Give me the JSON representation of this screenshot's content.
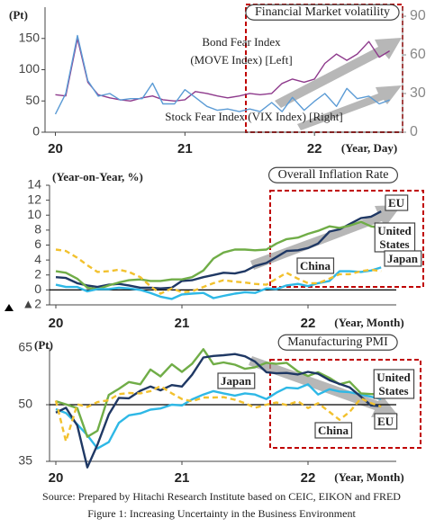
{
  "chart_data": [
    {
      "type": "line",
      "title": "Financial Market volatility",
      "y_label": "(Pt)",
      "x_label": "(Year, Day)",
      "x": [
        2020.0,
        2020.08,
        2020.17,
        2020.25,
        2020.33,
        2020.42,
        2020.5,
        2020.58,
        2020.67,
        2020.75,
        2020.83,
        2020.92,
        2021.0,
        2021.08,
        2021.17,
        2021.25,
        2021.33,
        2021.42,
        2021.5,
        2021.58,
        2021.67,
        2021.75,
        2021.83,
        2021.92,
        2022.0,
        2022.08,
        2022.17,
        2022.25,
        2022.33,
        2022.42,
        2022.5,
        2022.58
      ],
      "xlim": [
        2019.92,
        2022.68
      ],
      "xticks": [
        {
          "value": 2020,
          "label": "20"
        },
        {
          "value": 2021,
          "label": "21"
        },
        {
          "value": 2022,
          "label": "22"
        }
      ],
      "ylim": [
        0,
        200
      ],
      "yticks": [
        0,
        50,
        100,
        150
      ],
      "y2lim": [
        0,
        97
      ],
      "y2ticks": [
        0,
        30,
        60,
        90
      ],
      "series": [
        {
          "name": "Bond Fear Index",
          "note": "(MOVE Index) [Left]",
          "color": "#8e3a8c",
          "axis": "y",
          "values": [
            60,
            58,
            150,
            80,
            60,
            55,
            52,
            50,
            55,
            58,
            52,
            50,
            52,
            65,
            62,
            58,
            55,
            58,
            62,
            60,
            62,
            78,
            85,
            80,
            85,
            110,
            125,
            115,
            125,
            145,
            120,
            130
          ]
        },
        {
          "name": "Stock Fear Index (VIX Index) [Right]",
          "color": "#5b9bd5",
          "axis": "y2",
          "values": [
            14,
            30,
            75,
            40,
            28,
            30,
            25,
            26,
            26,
            38,
            22,
            22,
            33,
            27,
            20,
            17,
            18,
            16,
            18,
            16,
            23,
            16,
            27,
            17,
            24,
            30,
            20,
            34,
            26,
            28,
            22,
            25
          ]
        }
      ]
    },
    {
      "type": "line",
      "title": "Overall Inflation Rate",
      "y_label": "(Year-on-Year, %)",
      "x_label": "(Year, Month)",
      "x": [
        2020.0,
        2020.08,
        2020.17,
        2020.25,
        2020.33,
        2020.42,
        2020.5,
        2020.58,
        2020.67,
        2020.75,
        2020.83,
        2020.92,
        2021.0,
        2021.08,
        2021.17,
        2021.25,
        2021.33,
        2021.42,
        2021.5,
        2021.58,
        2021.67,
        2021.75,
        2021.83,
        2021.92,
        2022.0,
        2022.08,
        2022.17,
        2022.25,
        2022.33,
        2022.42,
        2022.5,
        2022.58
      ],
      "xlim": [
        2019.95,
        2022.7
      ],
      "xticks": [
        {
          "value": 2020,
          "label": "20"
        },
        {
          "value": 2021,
          "label": "21"
        },
        {
          "value": 2022,
          "label": "22"
        }
      ],
      "ylim": [
        -2,
        14
      ],
      "yticks": [
        {
          "value": -2,
          "label": "▲2"
        },
        0,
        2,
        4,
        6,
        8,
        10,
        12,
        14
      ],
      "reference_line": 0,
      "series": [
        {
          "name": "EU",
          "color": "#1f3864",
          "values": [
            1.7,
            1.6,
            0.9,
            0.6,
            0.4,
            0.7,
            0.8,
            0.6,
            0.3,
            0.3,
            0.2,
            0.3,
            1.2,
            1.3,
            1.7,
            2.0,
            2.3,
            2.2,
            2.5,
            3.2,
            3.6,
            4.4,
            5.2,
            5.3,
            5.6,
            6.2,
            7.8,
            8.1,
            8.8,
            9.6,
            9.8,
            10.5
          ]
        },
        {
          "name": "United States",
          "color": "#70ad47",
          "values": [
            2.5,
            2.3,
            1.5,
            0.3,
            0.1,
            0.6,
            1.0,
            1.3,
            1.4,
            1.2,
            1.2,
            1.4,
            1.4,
            1.7,
            2.6,
            4.2,
            5.0,
            5.4,
            5.4,
            5.3,
            5.4,
            6.2,
            6.8,
            7.0,
            7.5,
            7.9,
            8.5,
            8.3,
            8.6,
            9.1,
            8.5,
            8.3
          ]
        },
        {
          "name": "Japan",
          "color": "#2eb8e6",
          "values": [
            0.7,
            0.4,
            0.4,
            -0.2,
            0.1,
            0.1,
            0.3,
            0.2,
            0.0,
            -0.4,
            -0.9,
            -1.2,
            -0.6,
            -0.5,
            -0.4,
            -1.1,
            -0.8,
            -0.5,
            -0.3,
            -0.4,
            0.2,
            0.1,
            0.6,
            0.8,
            0.5,
            0.9,
            1.2,
            2.5,
            2.5,
            2.4,
            2.6,
            3.0
          ]
        },
        {
          "name": "China",
          "color": "#f2c12e",
          "dashed": true,
          "values": [
            5.4,
            5.2,
            4.3,
            3.3,
            2.4,
            2.5,
            2.7,
            2.4,
            1.7,
            0.5,
            -0.5,
            0.2,
            -0.3,
            -0.2,
            0.4,
            0.9,
            1.3,
            1.1,
            1.0,
            0.8,
            0.7,
            1.5,
            2.3,
            1.5,
            0.9,
            0.9,
            1.5,
            2.1,
            2.1,
            2.5,
            2.7,
            2.5
          ]
        }
      ]
    },
    {
      "type": "line",
      "title": "Manufacturing PMI",
      "y_label": "(Pt)",
      "x_label": "(Year, Month)",
      "x": [
        2020.0,
        2020.08,
        2020.17,
        2020.25,
        2020.33,
        2020.42,
        2020.5,
        2020.58,
        2020.67,
        2020.75,
        2020.83,
        2020.92,
        2021.0,
        2021.08,
        2021.17,
        2021.25,
        2021.33,
        2021.42,
        2021.5,
        2021.58,
        2021.67,
        2021.75,
        2021.83,
        2021.92,
        2022.0,
        2022.08,
        2022.17,
        2022.25,
        2022.33,
        2022.42,
        2022.5,
        2022.58
      ],
      "xlim": [
        2019.95,
        2022.7
      ],
      "xticks": [
        {
          "value": 2020,
          "label": "20"
        },
        {
          "value": 2021,
          "label": "21"
        },
        {
          "value": 2022,
          "label": "22"
        }
      ],
      "ylim": [
        35,
        65
      ],
      "yticks": [
        35,
        50,
        65
      ],
      "reference_line": 50,
      "series": [
        {
          "name": "Japan",
          "color": "#2eb8e6",
          "values": [
            48.8,
            47.8,
            44.8,
            41.9,
            38.4,
            40.1,
            45.2,
            47.2,
            47.7,
            48.7,
            49.0,
            50.0,
            49.8,
            51.4,
            52.7,
            53.6,
            53.0,
            52.4,
            53.0,
            52.7,
            51.5,
            53.2,
            54.5,
            54.3,
            55.4,
            52.7,
            54.1,
            53.5,
            53.3,
            52.7,
            52.1,
            51.5
          ]
        },
        {
          "name": "United States",
          "color": "#70ad47",
          "values": [
            50.9,
            50.1,
            49.1,
            41.5,
            43.1,
            52.6,
            54.2,
            56.0,
            55.4,
            59.3,
            57.5,
            60.7,
            58.7,
            60.8,
            64.7,
            60.7,
            61.2,
            60.6,
            59.5,
            59.9,
            61.1,
            60.8,
            61.1,
            58.8,
            57.6,
            58.6,
            57.1,
            55.4,
            56.1,
            53.0,
            52.8,
            52.8
          ]
        },
        {
          "name": "EU",
          "color": "#1f3864",
          "values": [
            47.9,
            49.2,
            44.5,
            33.4,
            39.4,
            47.4,
            51.8,
            51.7,
            53.7,
            54.8,
            53.8,
            55.2,
            54.8,
            57.9,
            62.5,
            62.9,
            63.1,
            63.4,
            62.8,
            61.4,
            58.6,
            58.3,
            58.4,
            58.0,
            58.7,
            58.2,
            56.5,
            55.5,
            54.6,
            52.1,
            49.8,
            49.6
          ]
        },
        {
          "name": "China",
          "color": "#f2c12e",
          "dashed": true,
          "values": [
            51.1,
            40.3,
            50.1,
            49.4,
            50.7,
            51.2,
            52.8,
            53.1,
            53.0,
            53.6,
            54.9,
            53.0,
            51.5,
            50.9,
            51.9,
            51.9,
            52.0,
            51.3,
            50.4,
            49.2,
            50.0,
            50.6,
            49.9,
            50.9,
            49.1,
            50.4,
            48.1,
            46.0,
            48.1,
            51.7,
            50.4,
            49.5
          ]
        }
      ]
    }
  ],
  "footer": {
    "source": "Source: Prepared by Hitachi Research Institute based on CEIC, EIKON and FRED",
    "caption": "Figure 1: Increasing Uncertainty in the Business Environment"
  }
}
